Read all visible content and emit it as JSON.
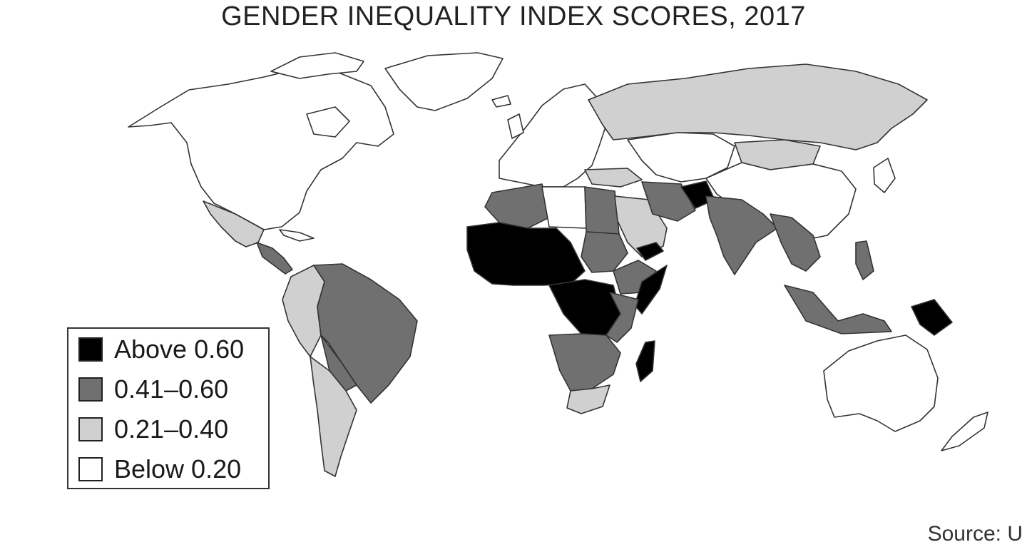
{
  "title": "GENDER INEQUALITY INDEX SCORES, 2017",
  "legend": [
    {
      "label": "Above 0.60",
      "color": "#000000"
    },
    {
      "label": "0.41–0.60",
      "color": "#707070"
    },
    {
      "label": "0.21–0.40",
      "color": "#d0d0d0"
    },
    {
      "label": "Below 0.20",
      "color": "#ffffff"
    }
  ],
  "source": "Source: U",
  "colors": {
    "outline": "#333333",
    "background": "#ffffff"
  }
}
